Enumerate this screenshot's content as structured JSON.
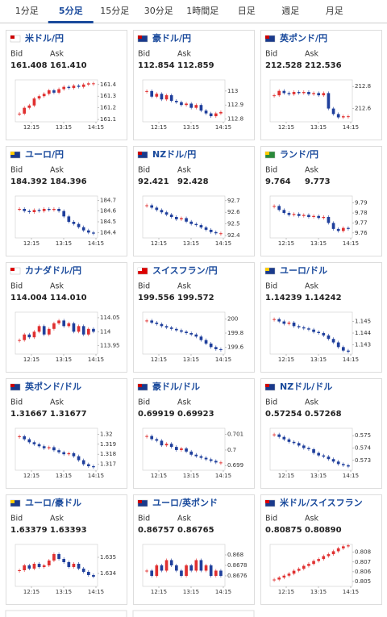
{
  "tabs": [
    "1分足",
    "5分足",
    "15分足",
    "30分足",
    "1時間足",
    "日足",
    "週足",
    "月足"
  ],
  "selected_tab": 1,
  "labels": {
    "bid": "Bid",
    "ask": "Ask"
  },
  "times": [
    "12:15",
    "13:15",
    "14:15"
  ],
  "cards": [
    {
      "name": "米ドル/円",
      "bid": "161.408",
      "ask": "161.410",
      "ylim": [
        161.08,
        161.44
      ],
      "yticks": [
        161.4,
        161.3,
        161.2,
        161.1
      ],
      "closes": [
        161.15,
        161.2,
        161.22,
        161.28,
        161.3,
        161.32,
        161.35,
        161.33,
        161.36,
        161.38,
        161.37,
        161.39,
        161.38,
        161.4,
        161.41,
        161.41
      ]
    },
    {
      "name": "豪ドル/円",
      "bid": "112.854",
      "ask": "112.859",
      "ylim": [
        112.78,
        113.08
      ],
      "yticks": [
        113,
        112.9,
        112.8
      ],
      "closes": [
        113.0,
        112.96,
        112.98,
        112.94,
        112.97,
        112.93,
        112.92,
        112.9,
        112.91,
        112.88,
        112.9,
        112.86,
        112.84,
        112.82,
        112.84,
        112.85
      ]
    },
    {
      "name": "英ポンド/円",
      "bid": "212.528",
      "ask": "212.536",
      "ylim": [
        212.48,
        212.86
      ],
      "yticks": [
        212.8,
        212.6
      ],
      "closes": [
        212.72,
        212.76,
        212.74,
        212.73,
        212.75,
        212.74,
        212.75,
        212.73,
        212.74,
        212.72,
        212.74,
        212.6,
        212.55,
        212.52,
        212.53,
        212.53
      ]
    },
    {
      "name": "ユーロ/円",
      "bid": "184.392",
      "ask": "184.396",
      "ylim": [
        184.35,
        184.74
      ],
      "yticks": [
        184.7,
        184.6,
        184.5,
        184.4
      ],
      "closes": [
        184.62,
        184.6,
        184.59,
        184.61,
        184.6,
        184.62,
        184.61,
        184.62,
        184.6,
        184.55,
        184.5,
        184.48,
        184.45,
        184.42,
        184.4,
        184.39
      ]
    },
    {
      "name": "NZドル/円",
      "bid": "92.421",
      "ask": "92.428",
      "ylim": [
        92.38,
        92.74
      ],
      "yticks": [
        92.7,
        92.6,
        92.5,
        92.4
      ],
      "closes": [
        92.66,
        92.64,
        92.62,
        92.6,
        92.58,
        92.56,
        92.54,
        92.55,
        92.52,
        92.5,
        92.49,
        92.47,
        92.45,
        92.43,
        92.42,
        92.42
      ]
    },
    {
      "name": "ランド/円",
      "bid": "9.764",
      "ask": "9.773",
      "ylim": [
        9.755,
        9.797
      ],
      "yticks": [
        9.79,
        9.78,
        9.77,
        9.76
      ],
      "closes": [
        9.787,
        9.783,
        9.78,
        9.778,
        9.779,
        9.777,
        9.778,
        9.776,
        9.777,
        9.775,
        9.776,
        9.77,
        9.764,
        9.762,
        9.765,
        9.764
      ]
    },
    {
      "name": "カナダドル/円",
      "bid": "114.004",
      "ask": "114.010",
      "ylim": [
        113.92,
        114.07
      ],
      "yticks": [
        114.05,
        114,
        113.95
      ],
      "closes": [
        113.97,
        113.99,
        113.98,
        114.0,
        114.02,
        113.99,
        114.01,
        114.03,
        114.04,
        114.02,
        114.03,
        114.0,
        114.02,
        113.99,
        114.01,
        114.0
      ]
    },
    {
      "name": "スイスフラン/円",
      "bid": "199.556",
      "ask": "199.572",
      "ylim": [
        199.5,
        200.1
      ],
      "yticks": [
        200,
        199.8,
        199.6
      ],
      "closes": [
        199.98,
        199.95,
        199.93,
        199.9,
        199.88,
        199.86,
        199.84,
        199.82,
        199.8,
        199.78,
        199.75,
        199.7,
        199.65,
        199.6,
        199.57,
        199.56
      ]
    },
    {
      "name": "ユーロ/ドル",
      "bid": "1.14239",
      "ask": "1.14242",
      "ylim": [
        1.1422,
        1.1458
      ],
      "yticks": [
        1.145,
        1.144,
        1.143
      ],
      "closes": [
        1.1452,
        1.145,
        1.1448,
        1.1449,
        1.1446,
        1.1445,
        1.1444,
        1.1443,
        1.1441,
        1.144,
        1.1438,
        1.1435,
        1.1432,
        1.1428,
        1.1425,
        1.1424
      ]
    },
    {
      "name": "英ポンド/ドル",
      "bid": "1.31667",
      "ask": "1.31677",
      "ylim": [
        1.3164,
        1.3206
      ],
      "yticks": [
        1.32,
        1.319,
        1.318,
        1.317
      ],
      "closes": [
        1.3198,
        1.3195,
        1.3192,
        1.319,
        1.3188,
        1.3186,
        1.3187,
        1.3184,
        1.3182,
        1.318,
        1.3181,
        1.3178,
        1.3174,
        1.317,
        1.3168,
        1.3167
      ]
    },
    {
      "name": "豪ドル/ドル",
      "bid": "0.69919",
      "ask": "0.69923",
      "ylim": [
        0.6987,
        0.7014
      ],
      "yticks": [
        0.701,
        0.7,
        0.699
      ],
      "closes": [
        0.7009,
        0.7007,
        0.7006,
        0.7003,
        0.7004,
        0.7002,
        0.7,
        0.7001,
        0.6999,
        0.6997,
        0.6996,
        0.6995,
        0.6994,
        0.6993,
        0.6992,
        0.6992
      ]
    },
    {
      "name": "NZドル/ドル",
      "bid": "0.57254",
      "ask": "0.57268",
      "ylim": [
        0.5722,
        0.5756
      ],
      "yticks": [
        0.575,
        0.574,
        0.573
      ],
      "closes": [
        0.5751,
        0.5749,
        0.5747,
        0.5745,
        0.5744,
        0.5742,
        0.574,
        0.5739,
        0.5736,
        0.5734,
        0.5733,
        0.5731,
        0.5729,
        0.5727,
        0.5726,
        0.5725
      ]
    },
    {
      "name": "ユーロ/豪ドル",
      "bid": "1.63379",
      "ask": "1.63393",
      "ylim": [
        1.6332,
        1.6358
      ],
      "yticks": [
        1.635,
        1.634
      ],
      "closes": [
        1.6342,
        1.6345,
        1.6343,
        1.6346,
        1.6344,
        1.6345,
        1.6348,
        1.6352,
        1.6349,
        1.6347,
        1.6344,
        1.6346,
        1.6343,
        1.6341,
        1.6339,
        1.6338
      ]
    },
    {
      "name": "ユーロ/英ポンド",
      "bid": "0.86757",
      "ask": "0.86765",
      "ylim": [
        0.8674,
        0.8682
      ],
      "yticks": [
        0.868,
        0.8678,
        0.8676
      ],
      "closes": [
        0.8677,
        0.8676,
        0.8678,
        0.8677,
        0.8679,
        0.8678,
        0.8677,
        0.8676,
        0.8678,
        0.8677,
        0.8679,
        0.8677,
        0.8678,
        0.8676,
        0.8677,
        0.8676
      ]
    },
    {
      "name": "米ドル/スイスフラン",
      "bid": "0.80875",
      "ask": "0.80890",
      "ylim": [
        0.8045,
        0.8088
      ],
      "yticks": [
        0.808,
        0.807,
        0.806,
        0.805
      ],
      "closes": [
        0.8052,
        0.8054,
        0.8056,
        0.8058,
        0.8061,
        0.8063,
        0.8066,
        0.8068,
        0.8071,
        0.8073,
        0.8076,
        0.8078,
        0.8081,
        0.8084,
        0.8086,
        0.8087
      ]
    }
  ]
}
